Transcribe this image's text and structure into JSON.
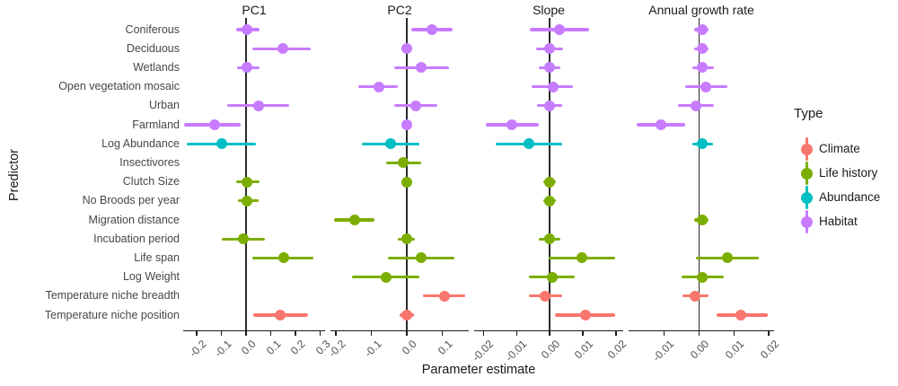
{
  "y_axis": {
    "title": "Predictor",
    "categories": [
      "Coniferous",
      "Deciduous",
      "Wetlands",
      "Open vegetation mosaic",
      "Urban",
      "Farmland",
      "Log Abundance",
      "Insectivores",
      "Clutch Size",
      "No Broods per year",
      "Migration distance",
      "Incubation period",
      "Life span",
      "Log Weight",
      "Temperature niche breadth",
      "Temperature niche position"
    ]
  },
  "x_axis": {
    "title": "Parameter estimate"
  },
  "legend": {
    "title": "Type",
    "items": [
      {
        "label": "Climate",
        "color": "#F8766D"
      },
      {
        "label": "Life history",
        "color": "#7CAE00"
      },
      {
        "label": "Abundance",
        "color": "#00BFC4"
      },
      {
        "label": "Habitat",
        "color": "#C77CFF"
      }
    ]
  },
  "chart_data": {
    "type": "scatter",
    "subtype": "faceted-forest-pointrange",
    "grid": "off",
    "legend_position": "right",
    "panels": [
      {
        "title": "PC1",
        "xlim": [
          -0.255,
          0.32
        ],
        "ticks": [
          -0.2,
          -0.1,
          0.0,
          0.1,
          0.2,
          0.3
        ],
        "tick_labels": [
          "-0.2",
          "-0.1",
          "0.0",
          "0.1",
          "0.2",
          "0.3"
        ],
        "points": [
          {
            "predictor": "Coniferous",
            "type": "Habitat",
            "est": 0.005,
            "lo": -0.04,
            "hi": 0.053
          },
          {
            "predictor": "Deciduous",
            "type": "Habitat",
            "est": 0.148,
            "lo": 0.027,
            "hi": 0.262
          },
          {
            "predictor": "Wetlands",
            "type": "Habitat",
            "est": 0.005,
            "lo": -0.038,
            "hi": 0.053
          },
          {
            "predictor": "Urban",
            "type": "Habitat",
            "est": 0.05,
            "lo": -0.077,
            "hi": 0.176
          },
          {
            "predictor": "Farmland",
            "type": "Habitat",
            "est": -0.127,
            "lo": -0.25,
            "hi": -0.023
          },
          {
            "predictor": "Log Abundance",
            "type": "Abundance",
            "est": -0.099,
            "lo": -0.24,
            "hi": 0.039
          },
          {
            "predictor": "Clutch Size",
            "type": "Life history",
            "est": 0.004,
            "lo": -0.04,
            "hi": 0.056
          },
          {
            "predictor": "No Broods per year",
            "type": "Life history",
            "est": 0.004,
            "lo": -0.034,
            "hi": 0.05
          },
          {
            "predictor": "Incubation period",
            "type": "Life history",
            "est": -0.012,
            "lo": -0.1,
            "hi": 0.075
          },
          {
            "predictor": "Life span",
            "type": "Life history",
            "est": 0.154,
            "lo": 0.027,
            "hi": 0.273
          },
          {
            "predictor": "Temperature niche position",
            "type": "Climate",
            "est": 0.137,
            "lo": 0.028,
            "hi": 0.252
          }
        ]
      },
      {
        "title": "PC2",
        "xlim": [
          -0.215,
          0.175
        ],
        "ticks": [
          -0.2,
          -0.1,
          0.0,
          0.1
        ],
        "tick_labels": [
          "-0.2",
          "-0.1",
          "0.0",
          "0.1"
        ],
        "points": [
          {
            "predictor": "Coniferous",
            "type": "Habitat",
            "est": 0.071,
            "lo": 0.013,
            "hi": 0.129
          },
          {
            "predictor": "Deciduous",
            "type": "Habitat",
            "est": 0.0,
            "lo": -0.014,
            "hi": 0.014
          },
          {
            "predictor": "Wetlands",
            "type": "Habitat",
            "est": 0.042,
            "lo": -0.036,
            "hi": 0.12
          },
          {
            "predictor": "Open vegetation mosaic",
            "type": "Habitat",
            "est": -0.079,
            "lo": -0.136,
            "hi": -0.026
          },
          {
            "predictor": "Urban",
            "type": "Habitat",
            "est": 0.025,
            "lo": -0.036,
            "hi": 0.087
          },
          {
            "predictor": "Farmland",
            "type": "Habitat",
            "est": 0.0,
            "lo": -0.014,
            "hi": 0.014
          },
          {
            "predictor": "Log Abundance",
            "type": "Abundance",
            "est": -0.045,
            "lo": -0.127,
            "hi": 0.036
          },
          {
            "predictor": "Insectivores",
            "type": "Life history",
            "est": -0.011,
            "lo": -0.058,
            "hi": 0.04
          },
          {
            "predictor": "Clutch Size",
            "type": "Life history",
            "est": 0.0,
            "lo": -0.014,
            "hi": 0.014
          },
          {
            "predictor": "Migration distance",
            "type": "Life history",
            "est": -0.147,
            "lo": -0.204,
            "hi": -0.091
          },
          {
            "predictor": "Incubation period",
            "type": "Life history",
            "est": 0.0,
            "lo": -0.025,
            "hi": 0.024
          },
          {
            "predictor": "Life span",
            "type": "Life history",
            "est": 0.042,
            "lo": -0.054,
            "hi": 0.134
          },
          {
            "predictor": "Log Weight",
            "type": "Life history",
            "est": -0.059,
            "lo": -0.155,
            "hi": 0.035
          },
          {
            "predictor": "Temperature niche breadth",
            "type": "Climate",
            "est": 0.106,
            "lo": 0.047,
            "hi": 0.164
          },
          {
            "predictor": "Temperature niche position",
            "type": "Climate",
            "est": 0.0,
            "lo": -0.02,
            "hi": 0.02
          }
        ]
      },
      {
        "title": "Slope",
        "xlim": [
          -0.0228,
          0.0222
        ],
        "ticks": [
          -0.02,
          -0.01,
          0.0,
          0.01,
          0.02
        ],
        "tick_labels": [
          "-0.02",
          "-0.01",
          "0.00",
          "0.01",
          "0.02"
        ],
        "points": [
          {
            "predictor": "Coniferous",
            "type": "Habitat",
            "est": 0.003,
            "lo": -0.006,
            "hi": 0.012
          },
          {
            "predictor": "Deciduous",
            "type": "Habitat",
            "est": 0.0,
            "lo": -0.004,
            "hi": 0.004
          },
          {
            "predictor": "Wetlands",
            "type": "Habitat",
            "est": 0.0,
            "lo": -0.0034,
            "hi": 0.0031
          },
          {
            "predictor": "Open vegetation mosaic",
            "type": "Habitat",
            "est": 0.001,
            "lo": -0.0054,
            "hi": 0.0069
          },
          {
            "predictor": "Urban",
            "type": "Habitat",
            "est": 0.0,
            "lo": -0.0037,
            "hi": 0.0037
          },
          {
            "predictor": "Farmland",
            "type": "Habitat",
            "est": -0.0113,
            "lo": -0.0192,
            "hi": -0.0032
          },
          {
            "predictor": "Log Abundance",
            "type": "Abundance",
            "est": -0.0063,
            "lo": -0.0162,
            "hi": 0.0038
          },
          {
            "predictor": "Clutch Size",
            "type": "Life history",
            "est": 0.0,
            "lo": -0.002,
            "hi": 0.002
          },
          {
            "predictor": "No Broods per year",
            "type": "Life history",
            "est": 0.0,
            "lo": -0.002,
            "hi": 0.002
          },
          {
            "predictor": "Incubation period",
            "type": "Life history",
            "est": 0.0,
            "lo": -0.0033,
            "hi": 0.0033
          },
          {
            "predictor": "Life span",
            "type": "Life history",
            "est": 0.0096,
            "lo": -0.0003,
            "hi": 0.0197
          },
          {
            "predictor": "Log Weight",
            "type": "Life history",
            "est": 0.0008,
            "lo": -0.0063,
            "hi": 0.0076
          },
          {
            "predictor": "Temperature niche breadth",
            "type": "Climate",
            "est": -0.0015,
            "lo": -0.0063,
            "hi": 0.0038
          },
          {
            "predictor": "Temperature niche position",
            "type": "Climate",
            "est": 0.0108,
            "lo": 0.0015,
            "hi": 0.0198
          }
        ]
      },
      {
        "title": "Annual growth rate",
        "xlim": [
          -0.0202,
          0.0215
        ],
        "ticks": [
          -0.01,
          0.0,
          0.01,
          0.02
        ],
        "tick_labels": [
          "-0.01",
          "0.00",
          "0.01",
          "0.02"
        ],
        "points": [
          {
            "predictor": "Coniferous",
            "type": "Habitat",
            "est": 0.0009,
            "lo": -0.0013,
            "hi": 0.0028
          },
          {
            "predictor": "Deciduous",
            "type": "Habitat",
            "est": 0.0009,
            "lo": -0.0013,
            "hi": 0.0028
          },
          {
            "predictor": "Wetlands",
            "type": "Habitat",
            "est": 0.001,
            "lo": -0.002,
            "hi": 0.0042
          },
          {
            "predictor": "Open vegetation mosaic",
            "type": "Habitat",
            "est": 0.002,
            "lo": -0.004,
            "hi": 0.008
          },
          {
            "predictor": "Urban",
            "type": "Habitat",
            "est": -0.001,
            "lo": -0.006,
            "hi": 0.0042
          },
          {
            "predictor": "Farmland",
            "type": "Habitat",
            "est": -0.011,
            "lo": -0.018,
            "hi": -0.004
          },
          {
            "predictor": "Log Abundance",
            "type": "Abundance",
            "est": 0.0008,
            "lo": -0.002,
            "hi": 0.004
          },
          {
            "predictor": "Migration distance",
            "type": "Life history",
            "est": 0.0009,
            "lo": -0.0013,
            "hi": 0.0028
          },
          {
            "predictor": "Life span",
            "type": "Life history",
            "est": 0.008,
            "lo": -0.001,
            "hi": 0.017
          },
          {
            "predictor": "Log Weight",
            "type": "Life history",
            "est": 0.001,
            "lo": -0.005,
            "hi": 0.007
          },
          {
            "predictor": "Temperature niche breadth",
            "type": "Climate",
            "est": -0.0012,
            "lo": -0.0048,
            "hi": 0.0028
          },
          {
            "predictor": "Temperature niche position",
            "type": "Climate",
            "est": 0.0121,
            "lo": 0.005,
            "hi": 0.0196
          }
        ]
      }
    ]
  }
}
